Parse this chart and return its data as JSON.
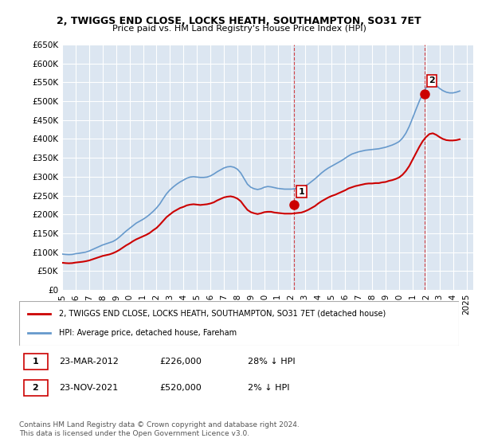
{
  "title": "2, TWIGGS END CLOSE, LOCKS HEATH, SOUTHAMPTON, SO31 7ET",
  "subtitle": "Price paid vs. HM Land Registry's House Price Index (HPI)",
  "xlabel": "",
  "ylabel": "",
  "bg_color": "#ffffff",
  "plot_bg_color": "#dce6f1",
  "grid_color": "#ffffff",
  "red_line_color": "#cc0000",
  "blue_line_color": "#6699cc",
  "marker1_color": "#cc0000",
  "marker2_color": "#cc0000",
  "ylim": [
    0,
    650000
  ],
  "yticks": [
    0,
    50000,
    100000,
    150000,
    200000,
    250000,
    300000,
    350000,
    400000,
    450000,
    500000,
    550000,
    600000,
    650000
  ],
  "ytick_labels": [
    "£0",
    "£50K",
    "£100K",
    "£150K",
    "£200K",
    "£250K",
    "£300K",
    "£350K",
    "£400K",
    "£450K",
    "£500K",
    "£550K",
    "£600K",
    "£650K"
  ],
  "xlim_start": 1995.0,
  "xlim_end": 2025.5,
  "xticks": [
    1995,
    1996,
    1997,
    1998,
    1999,
    2000,
    2001,
    2002,
    2003,
    2004,
    2005,
    2006,
    2007,
    2008,
    2009,
    2010,
    2011,
    2012,
    2013,
    2014,
    2015,
    2016,
    2017,
    2018,
    2019,
    2020,
    2021,
    2022,
    2023,
    2024,
    2025
  ],
  "sale1_x": 2012.23,
  "sale1_y": 226000,
  "sale1_label": "1",
  "sale2_x": 2021.9,
  "sale2_y": 520000,
  "sale2_label": "2",
  "legend_red": "2, TWIGGS END CLOSE, LOCKS HEATH, SOUTHAMPTON, SO31 7ET (detached house)",
  "legend_blue": "HPI: Average price, detached house, Fareham",
  "table_row1": "1    23-MAR-2012    £226,000    28% ↓ HPI",
  "table_row2": "2    23-NOV-2021    £520,000    2% ↓ HPI",
  "footer": "Contains HM Land Registry data © Crown copyright and database right 2024.\nThis data is licensed under the Open Government Licence v3.0.",
  "hpi_years": [
    1995.0,
    1995.25,
    1995.5,
    1995.75,
    1996.0,
    1996.25,
    1996.5,
    1996.75,
    1997.0,
    1997.25,
    1997.5,
    1997.75,
    1998.0,
    1998.25,
    1998.5,
    1998.75,
    1999.0,
    1999.25,
    1999.5,
    1999.75,
    2000.0,
    2000.25,
    2000.5,
    2000.75,
    2001.0,
    2001.25,
    2001.5,
    2001.75,
    2002.0,
    2002.25,
    2002.5,
    2002.75,
    2003.0,
    2003.25,
    2003.5,
    2003.75,
    2004.0,
    2004.25,
    2004.5,
    2004.75,
    2005.0,
    2005.25,
    2005.5,
    2005.75,
    2006.0,
    2006.25,
    2006.5,
    2006.75,
    2007.0,
    2007.25,
    2007.5,
    2007.75,
    2008.0,
    2008.25,
    2008.5,
    2008.75,
    2009.0,
    2009.25,
    2009.5,
    2009.75,
    2010.0,
    2010.25,
    2010.5,
    2010.75,
    2011.0,
    2011.25,
    2011.5,
    2011.75,
    2012.0,
    2012.25,
    2012.5,
    2012.75,
    2013.0,
    2013.25,
    2013.5,
    2013.75,
    2014.0,
    2014.25,
    2014.5,
    2014.75,
    2015.0,
    2015.25,
    2015.5,
    2015.75,
    2016.0,
    2016.25,
    2016.5,
    2016.75,
    2017.0,
    2017.25,
    2017.5,
    2017.75,
    2018.0,
    2018.25,
    2018.5,
    2018.75,
    2019.0,
    2019.25,
    2019.5,
    2019.75,
    2020.0,
    2020.25,
    2020.5,
    2020.75,
    2021.0,
    2021.25,
    2021.5,
    2021.75,
    2022.0,
    2022.25,
    2022.5,
    2022.75,
    2023.0,
    2023.25,
    2023.5,
    2023.75,
    2024.0,
    2024.25,
    2024.5
  ],
  "hpi_values": [
    95000,
    94000,
    93500,
    94000,
    96000,
    97000,
    98500,
    100000,
    103000,
    107000,
    111000,
    115000,
    119000,
    122000,
    125000,
    128000,
    133000,
    140000,
    148000,
    156000,
    163000,
    170000,
    177000,
    182000,
    187000,
    193000,
    200000,
    208000,
    217000,
    228000,
    242000,
    255000,
    265000,
    273000,
    280000,
    286000,
    291000,
    296000,
    299000,
    300000,
    299000,
    298000,
    298000,
    299000,
    302000,
    307000,
    313000,
    318000,
    323000,
    326000,
    327000,
    325000,
    320000,
    310000,
    295000,
    280000,
    272000,
    268000,
    266000,
    268000,
    272000,
    274000,
    273000,
    271000,
    269000,
    268000,
    267000,
    267000,
    267000,
    268000,
    269000,
    271000,
    275000,
    280000,
    287000,
    294000,
    302000,
    310000,
    317000,
    323000,
    328000,
    333000,
    338000,
    343000,
    349000,
    355000,
    360000,
    363000,
    366000,
    368000,
    370000,
    371000,
    372000,
    373000,
    374000,
    376000,
    378000,
    381000,
    384000,
    388000,
    393000,
    402000,
    415000,
    433000,
    455000,
    478000,
    500000,
    520000,
    535000,
    545000,
    548000,
    542000,
    534000,
    528000,
    524000,
    522000,
    522000,
    524000,
    527000
  ],
  "red_years": [
    1995.0,
    1995.25,
    1995.5,
    1995.75,
    1996.0,
    1996.25,
    1996.5,
    1996.75,
    1997.0,
    1997.25,
    1997.5,
    1997.75,
    1998.0,
    1998.25,
    1998.5,
    1998.75,
    1999.0,
    1999.25,
    1999.5,
    1999.75,
    2000.0,
    2000.25,
    2000.5,
    2000.75,
    2001.0,
    2001.25,
    2001.5,
    2001.75,
    2002.0,
    2002.25,
    2002.5,
    2002.75,
    2003.0,
    2003.25,
    2003.5,
    2003.75,
    2004.0,
    2004.25,
    2004.5,
    2004.75,
    2005.0,
    2005.25,
    2005.5,
    2005.75,
    2006.0,
    2006.25,
    2006.5,
    2006.75,
    2007.0,
    2007.25,
    2007.5,
    2007.75,
    2008.0,
    2008.25,
    2008.5,
    2008.75,
    2009.0,
    2009.25,
    2009.5,
    2009.75,
    2010.0,
    2010.25,
    2010.5,
    2010.75,
    2011.0,
    2011.25,
    2011.5,
    2011.75,
    2012.0,
    2012.25,
    2012.5,
    2012.75,
    2013.0,
    2013.25,
    2013.5,
    2013.75,
    2014.0,
    2014.25,
    2014.5,
    2014.75,
    2015.0,
    2015.25,
    2015.5,
    2015.75,
    2016.0,
    2016.25,
    2016.5,
    2016.75,
    2017.0,
    2017.25,
    2017.5,
    2017.75,
    2018.0,
    2018.25,
    2018.5,
    2018.75,
    2019.0,
    2019.25,
    2019.5,
    2019.75,
    2020.0,
    2020.25,
    2020.5,
    2020.75,
    2021.0,
    2021.25,
    2021.5,
    2021.75,
    2022.0,
    2022.25,
    2022.5,
    2022.75,
    2023.0,
    2023.25,
    2023.5,
    2023.75,
    2024.0,
    2024.25,
    2024.5
  ],
  "red_values": [
    72000,
    71000,
    70500,
    71000,
    72500,
    73500,
    74500,
    76000,
    78000,
    81000,
    84000,
    87000,
    90000,
    92000,
    94000,
    97000,
    101000,
    106000,
    112000,
    118000,
    123000,
    129000,
    134000,
    138000,
    142000,
    146000,
    151000,
    158000,
    164000,
    173000,
    183000,
    193000,
    200000,
    207000,
    212000,
    217000,
    220000,
    224000,
    226000,
    227000,
    226000,
    225000,
    226000,
    227000,
    229000,
    232000,
    237000,
    241000,
    245000,
    247000,
    248000,
    246000,
    242000,
    235000,
    223000,
    212000,
    206000,
    203000,
    201000,
    203000,
    206000,
    207000,
    207000,
    205000,
    204000,
    203000,
    202000,
    202000,
    202000,
    203000,
    204000,
    205000,
    208000,
    212000,
    217000,
    222000,
    229000,
    235000,
    240000,
    245000,
    249000,
    252000,
    256000,
    260000,
    264000,
    269000,
    272000,
    275000,
    277000,
    279000,
    281000,
    282000,
    282000,
    283000,
    283000,
    285000,
    286000,
    289000,
    291000,
    294000,
    298000,
    305000,
    315000,
    328000,
    345000,
    362000,
    379000,
    394000,
    405000,
    413000,
    415000,
    411000,
    405000,
    400000,
    397000,
    396000,
    396000,
    397000,
    399000
  ]
}
